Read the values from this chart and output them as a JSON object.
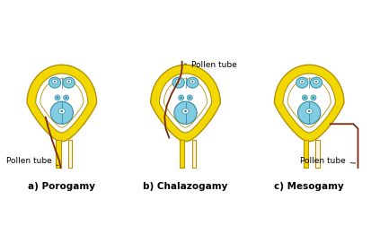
{
  "labels": [
    "a) Porogamy",
    "b) Chalazogamy",
    "c) Mesogamy"
  ],
  "bg_color": "#ffffff",
  "outer_color": "#f0d800",
  "outer_edge": "#b8900a",
  "inner_color": "#ffffff",
  "cell_color": "#80cce0",
  "cell_edge": "#3a8aa0",
  "tube_color": "#7a2808",
  "stalk_color": "#f0d800",
  "label_fontsize": 7.5,
  "annot_fontsize": 6.5
}
